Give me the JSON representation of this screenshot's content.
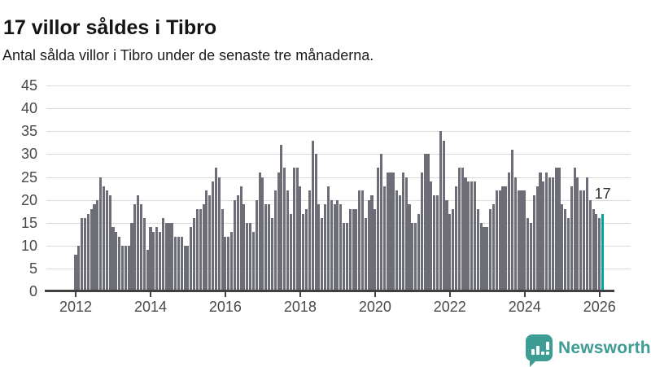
{
  "header": {
    "title": "17 villor såldes i Tibro",
    "subtitle": "Antal sålda villor i Tibro under de senaste tre månaderna."
  },
  "chart_data": {
    "type": "bar",
    "title": "17 villor såldes i Tibro",
    "subtitle": "Antal sålda villor i Tibro under de senaste tre månaderna.",
    "unit": "sålda villor per 3-månadersperiod",
    "x_start_month": "2012-01",
    "x_end_month": "2026-02",
    "values_by_year": {
      "2012": [
        8,
        10,
        16,
        16,
        17,
        18,
        19,
        20,
        25,
        23,
        22,
        21
      ],
      "2013": [
        14,
        13,
        12,
        10,
        10,
        10,
        15,
        19,
        21,
        19,
        16,
        9
      ],
      "2014": [
        14,
        13,
        14,
        13,
        16,
        15,
        15,
        15,
        12,
        12,
        12,
        10
      ],
      "2015": [
        10,
        14,
        16,
        18,
        18,
        19,
        22,
        21,
        24,
        27,
        25,
        18
      ],
      "2016": [
        12,
        12,
        13,
        20,
        21,
        23,
        19,
        15,
        15,
        13,
        20,
        26
      ],
      "2017": [
        25,
        19,
        19,
        16,
        22,
        26,
        32,
        27,
        22,
        17,
        27,
        27
      ],
      "2018": [
        23,
        17,
        18,
        22,
        33,
        30,
        19,
        16,
        19,
        23,
        20,
        19
      ],
      "2019": [
        20,
        19,
        15,
        15,
        18,
        18,
        18,
        22,
        22,
        16,
        20,
        21
      ],
      "2020": [
        18,
        27,
        30,
        23,
        26,
        26,
        26,
        22,
        21,
        26,
        25,
        19
      ],
      "2021": [
        15,
        15,
        17,
        26,
        30,
        30,
        24,
        21,
        21,
        35,
        33,
        20
      ],
      "2022": [
        17,
        18,
        23,
        27,
        27,
        25,
        24,
        24,
        24,
        18,
        15,
        14
      ],
      "2023": [
        14,
        18,
        19,
        22,
        22,
        23,
        23,
        26,
        31,
        25,
        22,
        22
      ],
      "2024": [
        22,
        16,
        15,
        21,
        23,
        26,
        24,
        26,
        25,
        25,
        27,
        27
      ],
      "2025": [
        19,
        18,
        16,
        23,
        27,
        25,
        22,
        22,
        25,
        20,
        18,
        17
      ],
      "2026": [
        16,
        17
      ]
    },
    "highlight_last_bar": true,
    "annotation": {
      "text": "17"
    },
    "yticks": [
      0,
      5,
      10,
      15,
      20,
      25,
      30,
      35,
      40,
      45
    ],
    "ylim": [
      0,
      45
    ],
    "xticks": [
      2012,
      2014,
      2016,
      2018,
      2020,
      2022,
      2024,
      2026
    ],
    "grid": true,
    "legend": "none",
    "colors": {
      "bar": "#6d6d78",
      "highlight": "#00a3a3",
      "gridline": "#dadada",
      "axis": "#404040",
      "axis_label": "#494949",
      "annotation_text": "#2e2e2e"
    }
  },
  "footer": {
    "brand": "Newsworthy",
    "brand_color": "#3d9c93"
  }
}
